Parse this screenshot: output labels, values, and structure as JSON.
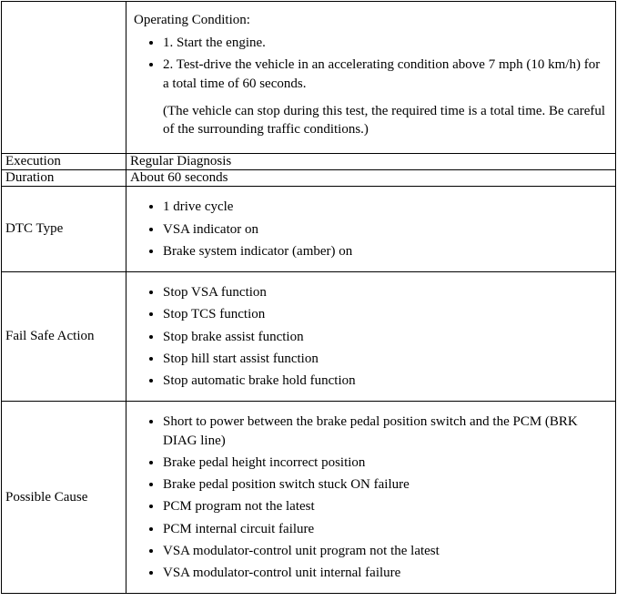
{
  "rows": {
    "operating_condition": {
      "label": "",
      "title": "Operating Condition:",
      "items": [
        "1. Start the engine.",
        "2. Test-drive the vehicle in an accelerating condition above 7 mph (10 km/h) for a total time of 60 seconds."
      ],
      "note": "(The vehicle can stop during this test, the required time is a total time. Be careful of the surrounding traffic conditions.)"
    },
    "execution": {
      "label": "Execution",
      "value": "Regular Diagnosis"
    },
    "duration": {
      "label": "Duration",
      "value": "About 60 seconds"
    },
    "dtc_type": {
      "label": "DTC Type",
      "items": [
        "1 drive cycle",
        "VSA indicator on",
        "Brake system indicator (amber) on"
      ]
    },
    "fail_safe": {
      "label": "Fail Safe Action",
      "items": [
        "Stop VSA function",
        "Stop TCS function",
        "Stop brake assist function",
        "Stop hill start assist function",
        "Stop automatic brake hold function"
      ]
    },
    "possible_cause": {
      "label": "Possible Cause",
      "items": [
        "Short to power between the brake pedal position switch and the PCM (BRK DIAG line)",
        "Brake pedal height incorrect position",
        "Brake pedal position switch stuck ON failure",
        "PCM program not the latest",
        "PCM internal circuit failure",
        "VSA modulator-control unit program not the latest",
        "VSA modulator-control unit internal failure"
      ]
    }
  }
}
